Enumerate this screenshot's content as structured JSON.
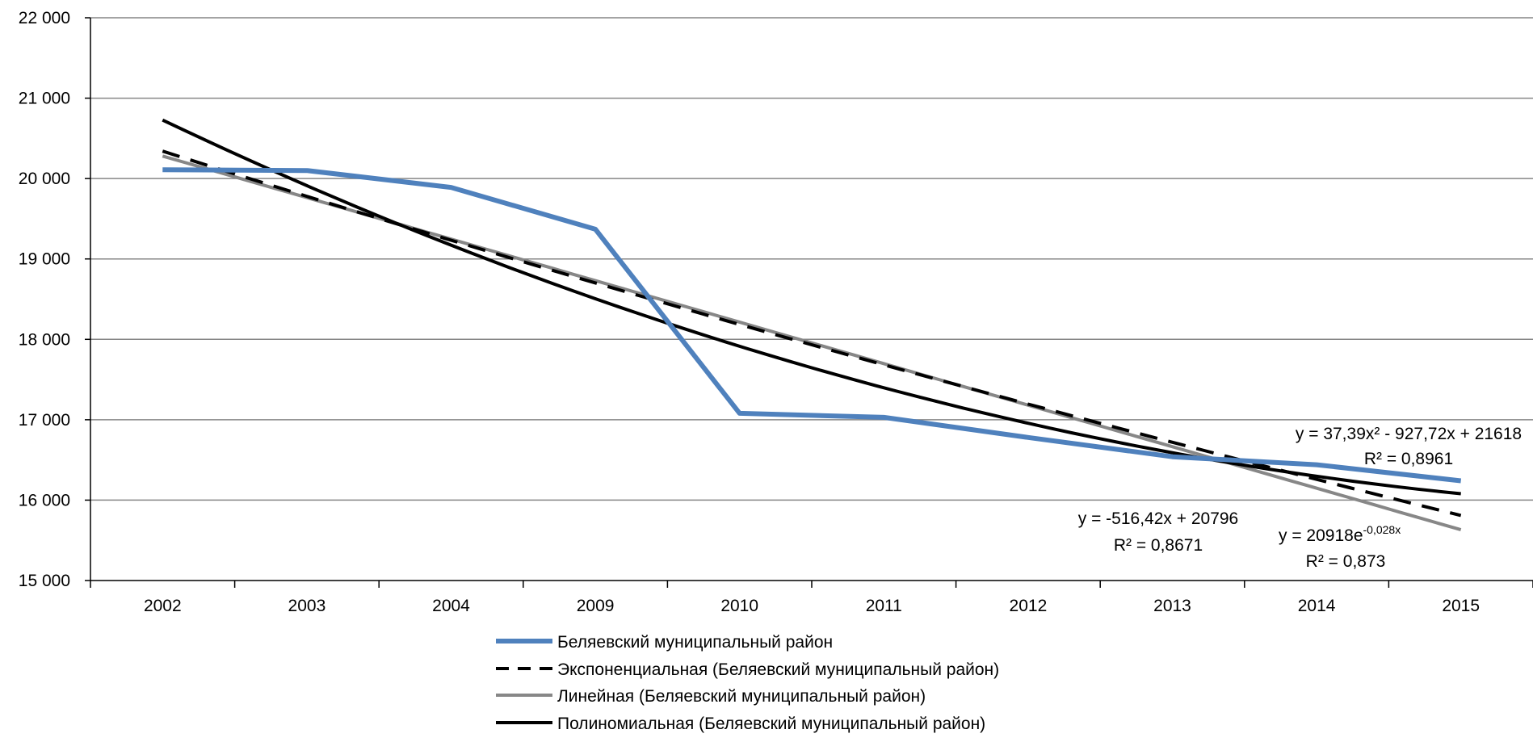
{
  "chart_data": {
    "type": "line",
    "categories": [
      "2002",
      "2003",
      "2004",
      "2009",
      "2010",
      "2011",
      "2012",
      "2013",
      "2014",
      "2015"
    ],
    "ylim": [
      15000,
      22000
    ],
    "yticks": [
      15000,
      16000,
      17000,
      18000,
      19000,
      20000,
      21000,
      22000
    ],
    "ytick_labels": [
      "15 000",
      "16 000",
      "17 000",
      "18 000",
      "19 000",
      "20 000",
      "21 000",
      "22 000"
    ],
    "grid": true,
    "legend_position": "bottom",
    "series": [
      {
        "name": "Беляевский муниципальный район",
        "style": "data",
        "color": "#4f81bd",
        "values": [
          20110,
          20100,
          19890,
          19370,
          17080,
          17030,
          16780,
          16540,
          16440,
          16240
        ]
      },
      {
        "name": "Экспоненциальная (Беляевский муниципальный район)",
        "style": "dashed",
        "color": "#000000",
        "formula": {
          "kind": "exp",
          "a": 20918,
          "b": -0.028
        }
      },
      {
        "name": "Линейная (Беляевский муниципальный район)",
        "style": "solid",
        "color": "#878787",
        "formula": {
          "kind": "linear",
          "m": -516.42,
          "c": 20796
        }
      },
      {
        "name": "Полиномиальная (Беляевский муниципальный район)",
        "style": "solid",
        "color": "#000000",
        "formula": {
          "kind": "poly2",
          "a": 37.39,
          "b": -927.72,
          "c": 21618
        }
      }
    ],
    "annotations": {
      "linear_eq": "y = -516,42x + 20796",
      "linear_r2": "R² = 0,8671",
      "exp_eq_main": "y = 20918e",
      "exp_eq_exponent": "-0,028x",
      "exp_r2": "R² = 0,873",
      "poly_eq": "y = 37,39x² - 927,72x + 21618",
      "poly_r2": "R² = 0,8961"
    }
  }
}
